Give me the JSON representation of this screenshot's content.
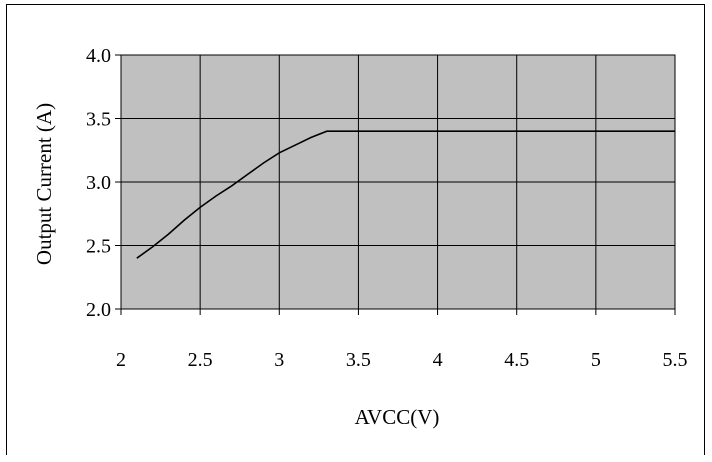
{
  "chart_data": {
    "type": "line",
    "title": "",
    "xlabel": "AVCC(V)",
    "ylabel": "Output Current (A)",
    "xlim": [
      2,
      5.5
    ],
    "ylim": [
      2.0,
      4.0
    ],
    "x_ticks": [
      "2",
      "2.5",
      "3",
      "3.5",
      "4",
      "4.5",
      "5",
      "5.5"
    ],
    "y_ticks": [
      "4.0",
      "3.5",
      "3.0",
      "2.5",
      "2.0"
    ],
    "grid": true,
    "plot_background": "#c0c0c0",
    "line_color": "#000000",
    "series": [
      {
        "x": [
          2.1,
          2.2,
          2.3,
          2.4,
          2.5,
          2.6,
          2.7,
          2.8,
          2.9,
          3.0,
          3.1,
          3.2,
          3.3,
          3.5,
          4.0,
          4.5,
          5.0,
          5.5
        ],
        "y": [
          2.4,
          2.49,
          2.59,
          2.7,
          2.8,
          2.89,
          2.97,
          3.06,
          3.15,
          3.23,
          3.29,
          3.35,
          3.4,
          3.4,
          3.4,
          3.4,
          3.4,
          3.4
        ]
      }
    ]
  }
}
